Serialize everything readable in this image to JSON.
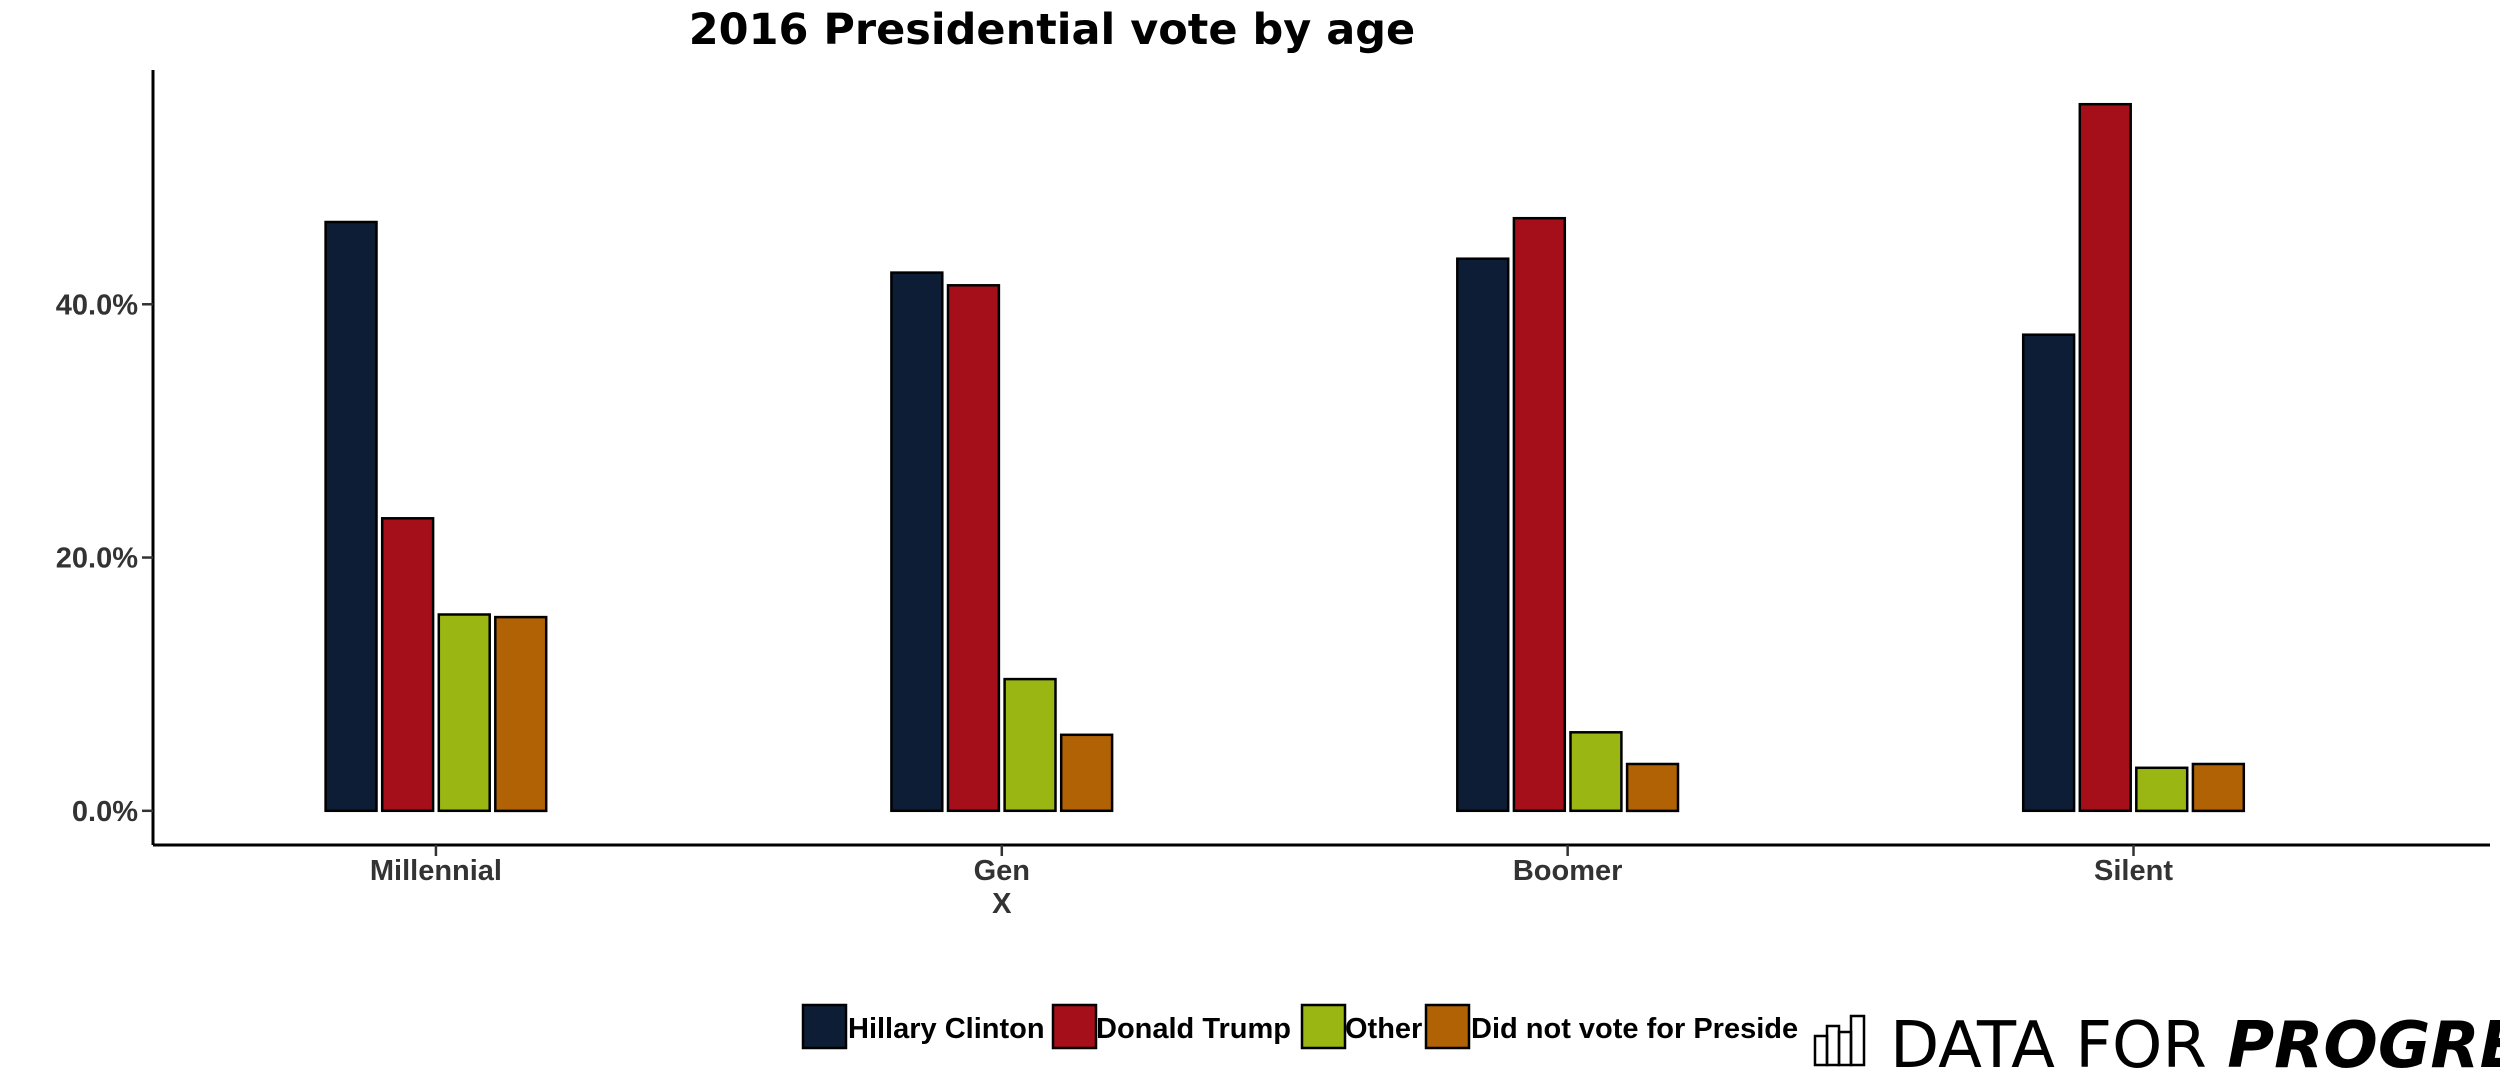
{
  "chart_data": {
    "type": "bar",
    "title": "2016 Presidential vote by age",
    "xlabel": "",
    "ylabel": "",
    "categories": [
      "Millennial",
      "Gen X",
      "Boomer",
      "Silent"
    ],
    "category_label_lines": [
      [
        "Millennial"
      ],
      [
        "Gen",
        "X"
      ],
      [
        "Boomer"
      ],
      [
        "Silent"
      ]
    ],
    "series": [
      {
        "name": "Hillary Clinton",
        "color": "#0c1d35",
        "values": [
          46.5,
          42.5,
          43.6,
          37.6
        ]
      },
      {
        "name": "Donald Trump",
        "color": "#a50f1a",
        "values": [
          23.1,
          41.5,
          46.8,
          55.8
        ]
      },
      {
        "name": "Other",
        "color": "#9ab613",
        "values": [
          15.5,
          10.4,
          6.2,
          3.4
        ]
      },
      {
        "name": "Did not vote for President",
        "color": "#b06205",
        "values": [
          15.3,
          6.0,
          3.7,
          3.7
        ]
      }
    ],
    "legend_visible_text": [
      "Hillary Clinton",
      "Donald Trump",
      "Other",
      "Did not vote for Preside"
    ],
    "yticks": [
      0,
      20,
      40
    ],
    "ytick_labels": [
      "0.0%",
      "20.0%",
      "40.0%"
    ],
    "ylim": [
      -2.7,
      58.5
    ],
    "grid": false,
    "legend_position": "bottom"
  },
  "brand": {
    "part1": "DATA FOR ",
    "part2": "PROGRESS",
    "icon": "bar-chart-icon"
  }
}
